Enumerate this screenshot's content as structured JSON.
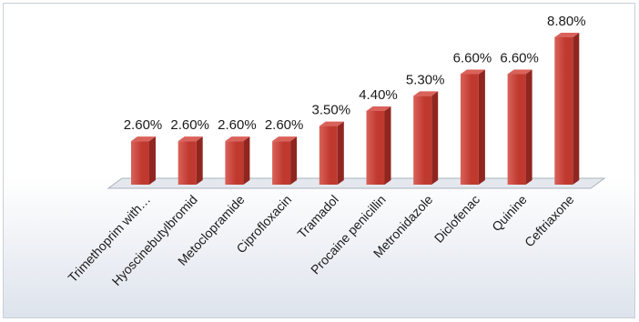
{
  "chart_data": {
    "type": "bar",
    "categories": [
      "Trimethoprim with…",
      "Hyoscinebutylbromid",
      "Metoclopramide",
      "Ciprofloxacin",
      "Tramadol",
      "Procaine penicillin",
      "Metronidazole",
      "Diclofenac",
      "Quinine",
      "Ceftriaxone"
    ],
    "values": [
      2.6,
      2.6,
      2.6,
      2.6,
      3.5,
      4.4,
      5.3,
      6.6,
      6.6,
      8.8
    ],
    "value_labels": [
      "2.60%",
      "2.60%",
      "2.60%",
      "2.60%",
      "3.50%",
      "4.40%",
      "5.30%",
      "6.60%",
      "6.60%",
      "8.80%"
    ],
    "ylim": [
      0,
      8.8
    ],
    "grid": false,
    "legend": "none",
    "style": "3d-column",
    "colors": {
      "bar_front": "#c0392f",
      "bar_side": "#8f2620",
      "bar_top": "#d9625a",
      "background_top": "#ffffff",
      "background_bottom": "#dde3ec",
      "floor": "#e4e8ee"
    }
  }
}
